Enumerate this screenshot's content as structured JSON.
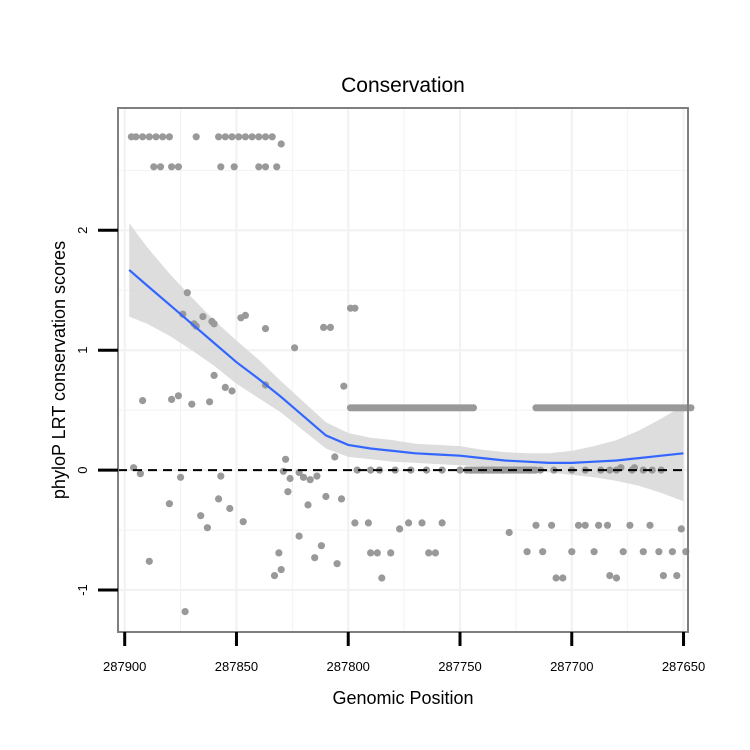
{
  "chart_data": {
    "type": "scatter",
    "title": "Conservation",
    "xlabel": "Genomic Position",
    "ylabel": "phyloP LRT conservation scores",
    "xlim": [
      287903,
      287648
    ],
    "x_reversed": true,
    "ylim": [
      -1.35,
      3.02
    ],
    "xticks": [
      287900,
      287850,
      287800,
      287750,
      287700,
      287650
    ],
    "xtick_labels": [
      "287900",
      "287850",
      "287800",
      "287750",
      "287700",
      "287650"
    ],
    "yticks": [
      2,
      1,
      0,
      -1
    ],
    "ytick_labels": [
      "2",
      "1",
      "0",
      "-1"
    ],
    "grid": true,
    "reference_line": {
      "y": 0,
      "style": "dashed",
      "color": "#000000"
    },
    "colors": {
      "points": "#999999",
      "smooth": "#3366ff",
      "ribbon": "#d9d9d9",
      "grid": "#f2f2f2",
      "frame": "#7f7f7f"
    },
    "smooth_fit": {
      "x": [
        287898,
        287890,
        287880,
        287870,
        287860,
        287850,
        287840,
        287830,
        287820,
        287810,
        287800,
        287790,
        287780,
        287770,
        287760,
        287750,
        287740,
        287730,
        287720,
        287710,
        287700,
        287690,
        287680,
        287670,
        287660,
        287650
      ],
      "y": [
        1.67,
        1.54,
        1.38,
        1.22,
        1.06,
        0.9,
        0.76,
        0.61,
        0.45,
        0.29,
        0.21,
        0.18,
        0.16,
        0.14,
        0.13,
        0.12,
        0.1,
        0.08,
        0.07,
        0.06,
        0.06,
        0.07,
        0.08,
        0.1,
        0.12,
        0.14
      ],
      "lower": [
        1.28,
        1.22,
        1.12,
        1.0,
        0.87,
        0.72,
        0.6,
        0.48,
        0.33,
        0.18,
        0.11,
        0.09,
        0.07,
        0.06,
        0.05,
        0.04,
        0.03,
        0.01,
        0.0,
        -0.02,
        -0.04,
        -0.06,
        -0.09,
        -0.13,
        -0.19,
        -0.26
      ],
      "upper": [
        2.06,
        1.86,
        1.64,
        1.44,
        1.25,
        1.08,
        0.92,
        0.74,
        0.57,
        0.4,
        0.31,
        0.27,
        0.25,
        0.22,
        0.21,
        0.2,
        0.17,
        0.15,
        0.14,
        0.14,
        0.16,
        0.2,
        0.25,
        0.33,
        0.43,
        0.54
      ]
    },
    "points": [
      [
        287897,
        2.78
      ],
      [
        287895,
        2.78
      ],
      [
        287892,
        2.78
      ],
      [
        287889,
        2.78
      ],
      [
        287886,
        2.78
      ],
      [
        287883,
        2.78
      ],
      [
        287880,
        2.78
      ],
      [
        287887,
        2.53
      ],
      [
        287884,
        2.53
      ],
      [
        287879,
        2.53
      ],
      [
        287876,
        2.53
      ],
      [
        287868,
        2.78
      ],
      [
        287858,
        2.78
      ],
      [
        287855,
        2.78
      ],
      [
        287852,
        2.78
      ],
      [
        287849,
        2.78
      ],
      [
        287846,
        2.78
      ],
      [
        287843,
        2.78
      ],
      [
        287840,
        2.78
      ],
      [
        287837,
        2.78
      ],
      [
        287834,
        2.78
      ],
      [
        287857,
        2.53
      ],
      [
        287851,
        2.53
      ],
      [
        287840,
        2.53
      ],
      [
        287837,
        2.53
      ],
      [
        287832,
        2.53
      ],
      [
        287830,
        2.72
      ],
      [
        287896,
        0.02
      ],
      [
        287893,
        -0.03
      ],
      [
        287892,
        0.58
      ],
      [
        287889,
        -0.76
      ],
      [
        287880,
        -0.28
      ],
      [
        287879,
        0.59
      ],
      [
        287876,
        0.62
      ],
      [
        287875,
        -0.06
      ],
      [
        287872,
        1.48
      ],
      [
        287874,
        1.3
      ],
      [
        287873,
        -1.18
      ],
      [
        287870,
        0.55
      ],
      [
        287869,
        1.22
      ],
      [
        287868,
        1.2
      ],
      [
        287866,
        -0.38
      ],
      [
        287865,
        1.28
      ],
      [
        287863,
        -0.48
      ],
      [
        287862,
        0.57
      ],
      [
        287861,
        1.24
      ],
      [
        287860,
        1.22
      ],
      [
        287860,
        0.79
      ],
      [
        287858,
        -0.24
      ],
      [
        287857,
        -0.05
      ],
      [
        287855,
        0.69
      ],
      [
        287853,
        -0.32
      ],
      [
        287852,
        0.66
      ],
      [
        287848,
        1.27
      ],
      [
        287847,
        -0.43
      ],
      [
        287846,
        1.29
      ],
      [
        287837,
        1.18
      ],
      [
        287837,
        0.71
      ],
      [
        287833,
        -0.88
      ],
      [
        287831,
        -0.69
      ],
      [
        287830,
        -0.83
      ],
      [
        287828,
        0.09
      ],
      [
        287829,
        -0.01
      ],
      [
        287827,
        -0.18
      ],
      [
        287826,
        -0.07
      ],
      [
        287824,
        1.02
      ],
      [
        287822,
        -0.55
      ],
      [
        287822,
        -0.02
      ],
      [
        287820,
        -0.06
      ],
      [
        287818,
        -0.29
      ],
      [
        287817,
        -0.08
      ],
      [
        287815,
        -0.73
      ],
      [
        287814,
        -0.05
      ],
      [
        287812,
        -0.63
      ],
      [
        287811,
        1.19
      ],
      [
        287810,
        -0.22
      ],
      [
        287808,
        1.19
      ],
      [
        287806,
        0.11
      ],
      [
        287805,
        -0.78
      ],
      [
        287803,
        -0.24
      ],
      [
        287802,
        0.7
      ],
      [
        287799,
        1.35
      ],
      [
        287797,
        1.35
      ],
      [
        287797,
        -0.44
      ],
      [
        287791,
        -0.44
      ],
      [
        287790,
        -0.69
      ],
      [
        287787,
        -0.69
      ],
      [
        287785,
        -0.9
      ],
      [
        287781,
        -0.69
      ],
      [
        287777,
        -0.49
      ],
      [
        287773,
        -0.44
      ],
      [
        287767,
        -0.44
      ],
      [
        287764,
        -0.69
      ],
      [
        287761,
        -0.69
      ],
      [
        287758,
        -0.44
      ],
      [
        287796,
        0.0
      ],
      [
        287790,
        0.0
      ],
      [
        287786,
        0.0
      ],
      [
        287779,
        0.0
      ],
      [
        287772,
        0.0
      ],
      [
        287765,
        0.0
      ],
      [
        287758,
        0.0
      ],
      [
        287750,
        0.0
      ],
      [
        287745,
        0.0
      ],
      [
        287740,
        0.0
      ],
      [
        287735,
        0.0
      ],
      [
        287731,
        0.0
      ],
      [
        287719,
        0.0
      ],
      [
        287714,
        0.0
      ],
      [
        287708,
        0.0
      ],
      [
        287700,
        0.0
      ],
      [
        287694,
        0.0
      ],
      [
        287687,
        0.0
      ],
      [
        287683,
        0.0
      ],
      [
        287680,
        0.0
      ],
      [
        287673,
        0.0
      ],
      [
        287668,
        0.0
      ],
      [
        287664,
        0.0
      ],
      [
        287660,
        0.0
      ],
      [
        287728,
        -0.52
      ],
      [
        287720,
        -0.68
      ],
      [
        287716,
        -0.46
      ],
      [
        287713,
        -0.68
      ],
      [
        287709,
        -0.46
      ],
      [
        287707,
        -0.9
      ],
      [
        287704,
        -0.9
      ],
      [
        287700,
        -0.68
      ],
      [
        287697,
        -0.46
      ],
      [
        287694,
        -0.46
      ],
      [
        287690,
        -0.68
      ],
      [
        287688,
        -0.46
      ],
      [
        287684,
        -0.46
      ],
      [
        287683,
        -0.88
      ],
      [
        287680,
        -0.9
      ],
      [
        287677,
        -0.68
      ],
      [
        287674,
        -0.46
      ],
      [
        287668,
        -0.68
      ],
      [
        287665,
        -0.46
      ],
      [
        287661,
        -0.68
      ],
      [
        287659,
        -0.88
      ],
      [
        287655,
        -0.68
      ],
      [
        287653,
        -0.88
      ],
      [
        287649,
        -0.68
      ],
      [
        287651,
        -0.49
      ],
      [
        287678,
        0.02
      ],
      [
        287672,
        0.02
      ]
    ],
    "point_runs": [
      {
        "y": 0.52,
        "x_from": 287799,
        "x_to": 287744
      },
      {
        "y": 0.52,
        "x_from": 287716,
        "x_to": 287646
      },
      {
        "y": 0.0,
        "x_from": 287747,
        "x_to": 287716
      }
    ]
  }
}
